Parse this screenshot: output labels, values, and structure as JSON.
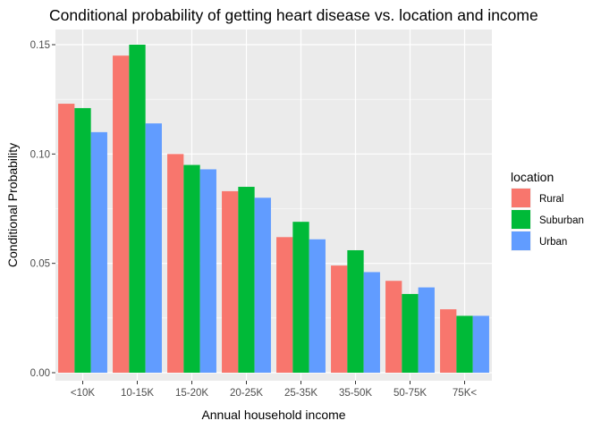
{
  "chart_data": {
    "type": "bar",
    "title": "Conditional probability of getting heart disease vs. location and income",
    "xlabel": "Annual household income",
    "ylabel": "Conditional Probability",
    "categories": [
      "<10K",
      "10-15K",
      "15-20K",
      "20-25K",
      "25-35K",
      "35-50K",
      "50-75K",
      "75K<"
    ],
    "yticks": [
      0.0,
      0.05,
      0.1,
      0.15
    ],
    "ytick_labels": [
      "0.00",
      "0.05",
      "0.10",
      "0.15"
    ],
    "ylim": [
      0,
      0.155
    ],
    "grid": true,
    "legend": {
      "title": "location",
      "placement": "right"
    },
    "series": [
      {
        "name": "Rural",
        "color": "#F8766D",
        "values": [
          0.123,
          0.145,
          0.1,
          0.083,
          0.062,
          0.049,
          0.042,
          0.029
        ]
      },
      {
        "name": "Suburban",
        "color": "#00BA38",
        "values": [
          0.121,
          0.15,
          0.095,
          0.085,
          0.069,
          0.056,
          0.036,
          0.026
        ]
      },
      {
        "name": "Urban",
        "color": "#619CFF",
        "values": [
          0.11,
          0.114,
          0.093,
          0.08,
          0.061,
          0.046,
          0.039,
          0.026
        ]
      }
    ]
  }
}
